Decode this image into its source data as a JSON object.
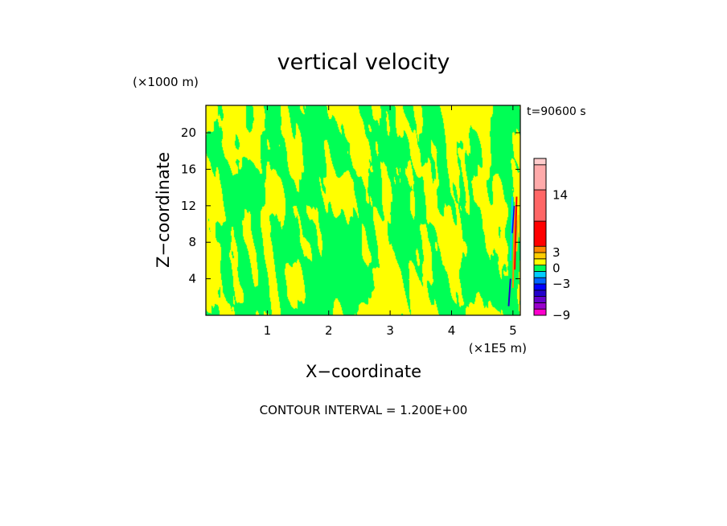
{
  "chart_data": {
    "type": "heatmap",
    "title": "vertical velocity",
    "xlabel": "X−coordinate",
    "ylabel": "Z−coordinate",
    "x_unit": "(×1E5 m)",
    "y_unit": "(×1000 m)",
    "time_label": "t=90600 s",
    "footer": "CONTOUR INTERVAL = 1.200E+00",
    "xlim": [
      0,
      5.12
    ],
    "ylim": [
      0,
      23
    ],
    "x_ticks": [
      1,
      2,
      3,
      4,
      5
    ],
    "y_ticks": [
      4,
      8,
      12,
      16,
      20
    ],
    "dominant_levels": {
      "negative": "#00ff55",
      "positive": "#ffff00"
    },
    "colorbar": {
      "tick_labels": [
        {
          "value": 14,
          "label": "14"
        },
        {
          "value": 3,
          "label": "3"
        },
        {
          "value": 0,
          "label": "0"
        },
        {
          "value": -3,
          "label": "−3"
        },
        {
          "value": -9,
          "label": "−9"
        }
      ],
      "levels": [
        {
          "from": -9.0,
          "to": -7.8,
          "color": "#ff00cc"
        },
        {
          "from": -7.8,
          "to": -6.6,
          "color": "#9900cc"
        },
        {
          "from": -6.6,
          "to": -5.4,
          "color": "#6600cc"
        },
        {
          "from": -5.4,
          "to": -4.2,
          "color": "#2200cc"
        },
        {
          "from": -4.2,
          "to": -3.0,
          "color": "#0000ff"
        },
        {
          "from": -3.0,
          "to": -1.8,
          "color": "#0066ff"
        },
        {
          "from": -1.8,
          "to": -0.6,
          "color": "#00ccff"
        },
        {
          "from": -0.6,
          "to": 0.6,
          "color": "#00ff55"
        },
        {
          "from": 0.6,
          "to": 1.8,
          "color": "#ffff00"
        },
        {
          "from": 1.8,
          "to": 3.0,
          "color": "#ffcc00"
        },
        {
          "from": 3.0,
          "to": 4.2,
          "color": "#ff8800"
        },
        {
          "from": 4.2,
          "to": 9.0,
          "color": "#ff0000"
        },
        {
          "from": 9.0,
          "to": 15.0,
          "color": "#ff6666"
        },
        {
          "from": 15.0,
          "to": 19.8,
          "color": "#ffaaaa"
        },
        {
          "from": 19.8,
          "to": 21.0,
          "color": "#ffcccc"
        }
      ]
    }
  }
}
